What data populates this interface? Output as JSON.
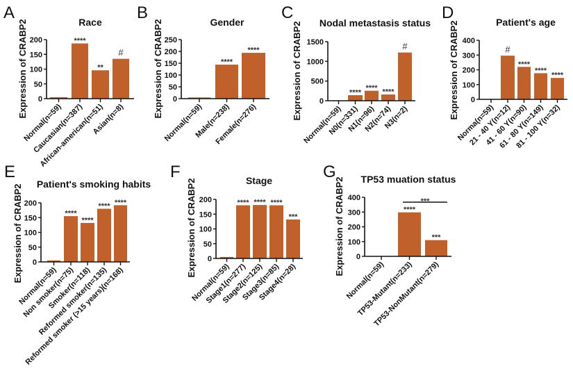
{
  "figure": {
    "description": "Seven bar-chart panels (A-G) of CRABP2 expression by clinical subgroup"
  },
  "style": {
    "bar_color": "#C0612B",
    "axis_color": "#111111",
    "text_color": "#111111"
  },
  "chart_data": [
    {
      "type": "bar",
      "panel": "A",
      "title": "Race",
      "xlabel": "",
      "ylabel": "Expression of CRABP2",
      "ylim": [
        0,
        200
      ],
      "yticks": [
        "0",
        "50",
        "100",
        "150",
        "200"
      ],
      "ytick_values": [
        0,
        50,
        100,
        150,
        200
      ],
      "categories": [
        "Normal(n=59)",
        "Caucasian(n=387)",
        "African-american(n=51)",
        "Asian(n=8)"
      ],
      "values": [
        5,
        187,
        96,
        135
      ],
      "significance": [
        "",
        "****",
        "**",
        "#"
      ]
    },
    {
      "type": "bar",
      "panel": "B",
      "title": "Gender",
      "xlabel": "",
      "ylabel": "Expression of CRABP2",
      "ylim": [
        0,
        250
      ],
      "yticks": [
        "0",
        "50",
        "100",
        "150",
        "200",
        "250"
      ],
      "ytick_values": [
        0,
        50,
        100,
        150,
        200,
        250
      ],
      "categories": [
        "Normal(n=59)",
        "Male(n=238)",
        "Female(n=276)"
      ],
      "values": [
        5,
        144,
        194
      ],
      "significance": [
        "",
        "****",
        "****"
      ]
    },
    {
      "type": "bar",
      "panel": "C",
      "title": "Nodal metastasis status",
      "xlabel": "",
      "ylabel": "Expression of CRABP2",
      "ylim": [
        0,
        1500
      ],
      "yticks": [
        "0",
        "500",
        "1000",
        "1500"
      ],
      "ytick_values": [
        0,
        500,
        1000,
        1500
      ],
      "categories": [
        "Normal(n=59)",
        "N0(n=331)",
        "N1(n=96)",
        "N2(n=74)",
        "N3(n=2)"
      ],
      "values": [
        4,
        141,
        254,
        159,
        1225
      ],
      "significance": [
        "",
        "****",
        "****",
        "****",
        "#"
      ]
    },
    {
      "type": "bar",
      "panel": "D",
      "title": "Patient's age",
      "xlabel": "",
      "ylabel": "Expression of CRABP2",
      "ylim": [
        0,
        400
      ],
      "yticks": [
        "0",
        "100",
        "200",
        "300",
        "400"
      ],
      "ytick_values": [
        0,
        100,
        200,
        300,
        400
      ],
      "categories": [
        "Norma(n=59)",
        "21 - 40 Y(n=12)",
        "41 - 60 Y(n=90)",
        "61 - 80 Y(n=149)",
        "81 - 100 Y(n=32)"
      ],
      "values": [
        2,
        296,
        220,
        177,
        145
      ],
      "significance": [
        "",
        "#",
        "****",
        "****",
        "****"
      ]
    },
    {
      "type": "bar",
      "panel": "E",
      "title": "Patient's smoking habits",
      "xlabel": "",
      "ylabel": "Expression of CRABP2",
      "ylim": [
        0,
        200
      ],
      "yticks": [
        "0",
        "50",
        "100",
        "150",
        "200"
      ],
      "ytick_values": [
        0,
        50,
        100,
        150,
        200
      ],
      "categories": [
        "Normal(n=59)",
        "Non smoker(n=75)",
        "Smoker(n=118)",
        "Reformed smoker(n=135)",
        "Reformed smoker (>15 years)(n=168)"
      ],
      "values": [
        5,
        155,
        132,
        180,
        192
      ],
      "significance": [
        "",
        "****",
        "****",
        "****",
        "****"
      ]
    },
    {
      "type": "bar",
      "panel": "F",
      "title": "Stage",
      "xlabel": "",
      "ylabel": "Expression of CRABP2",
      "ylim": [
        0,
        200
      ],
      "yticks": [
        "0",
        "50",
        "100",
        "150",
        "200"
      ],
      "ytick_values": [
        0,
        50,
        100,
        150,
        200
      ],
      "categories": [
        "Normal(n=59)",
        "Stage1(n=277)",
        "Stage2(n=125)",
        "Stage3(n=85)",
        "Stage4(n=28)"
      ],
      "values": [
        5,
        180,
        181,
        180,
        132
      ],
      "significance": [
        "",
        "****",
        "****",
        "****",
        "***"
      ]
    },
    {
      "type": "bar",
      "panel": "G",
      "title": "TP53 muation status",
      "xlabel": "",
      "ylabel": "Expression of CRABP2",
      "ylim": [
        0,
        400
      ],
      "yticks": [
        "0",
        "100",
        "200",
        "300",
        "400"
      ],
      "ytick_values": [
        0,
        100,
        200,
        300,
        400
      ],
      "categories": [
        "Normal(n=59)",
        "TP53-Mutant(n=233)",
        "TP53-NonMutant(n=279)"
      ],
      "values": [
        2,
        298,
        110
      ],
      "significance": [
        "",
        "****",
        "***"
      ],
      "comparison": {
        "between": [
          "TP53-Mutant(n=233)",
          "TP53-NonMutant(n=279)"
        ],
        "label": "***"
      }
    }
  ]
}
